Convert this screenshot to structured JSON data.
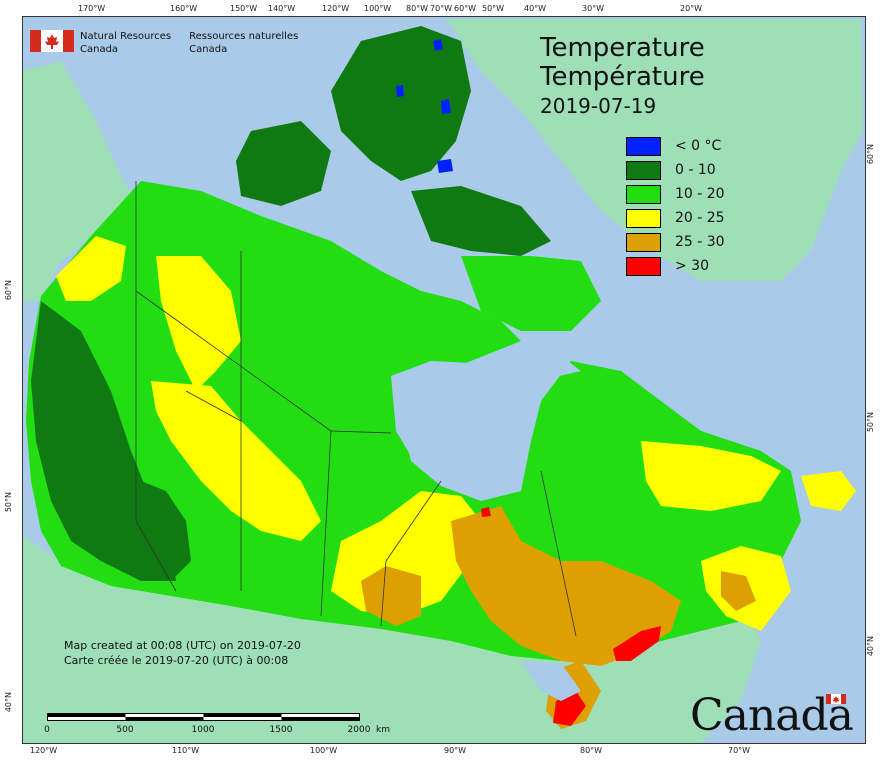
{
  "map": {
    "title_en": "Temperature",
    "title_fr": "Température",
    "date": "2019-07-19",
    "ocean_color": "#a9cbe9",
    "foreign_land_color": "#9fdfb8",
    "border_color": "#333333"
  },
  "agency": {
    "en_line1": "Natural Resources",
    "en_line2": "Canada",
    "fr_line1": "Ressources naturelles",
    "fr_line2": "Canada"
  },
  "legend": [
    {
      "label": "< 0 °C",
      "color": "#0022ff"
    },
    {
      "label": "0 - 10",
      "color": "#0f7a12"
    },
    {
      "label": "10 - 20",
      "color": "#22dd11"
    },
    {
      "label": "20 - 25",
      "color": "#ffff00"
    },
    {
      "label": "25 - 30",
      "color": "#dda000"
    },
    {
      "label": "> 30",
      "color": "#ff0000"
    }
  ],
  "graticule": {
    "top": [
      "170°W",
      "160°W",
      "150°W",
      "140°W",
      "120°W",
      "100°W",
      "80°W",
      "70°W",
      "60°W",
      "50°W",
      "40°W",
      "30°W",
      "20°W"
    ],
    "bottom": [
      "120°W",
      "110°W",
      "100°W",
      "90°W",
      "80°W",
      "70°W"
    ],
    "left": [
      "60°N",
      "50°N",
      "40°N"
    ],
    "right": [
      "60°N",
      "50°N",
      "40°N"
    ]
  },
  "note": {
    "en": "Map created at 00:08 (UTC) on 2019-07-20",
    "fr": "Carte créée le 2019-07-20 (UTC) à 00:08"
  },
  "scalebar": {
    "labels": [
      "0",
      "500",
      "1000",
      "1500",
      "2000"
    ],
    "unit": "km"
  },
  "wordmark": "Canada"
}
